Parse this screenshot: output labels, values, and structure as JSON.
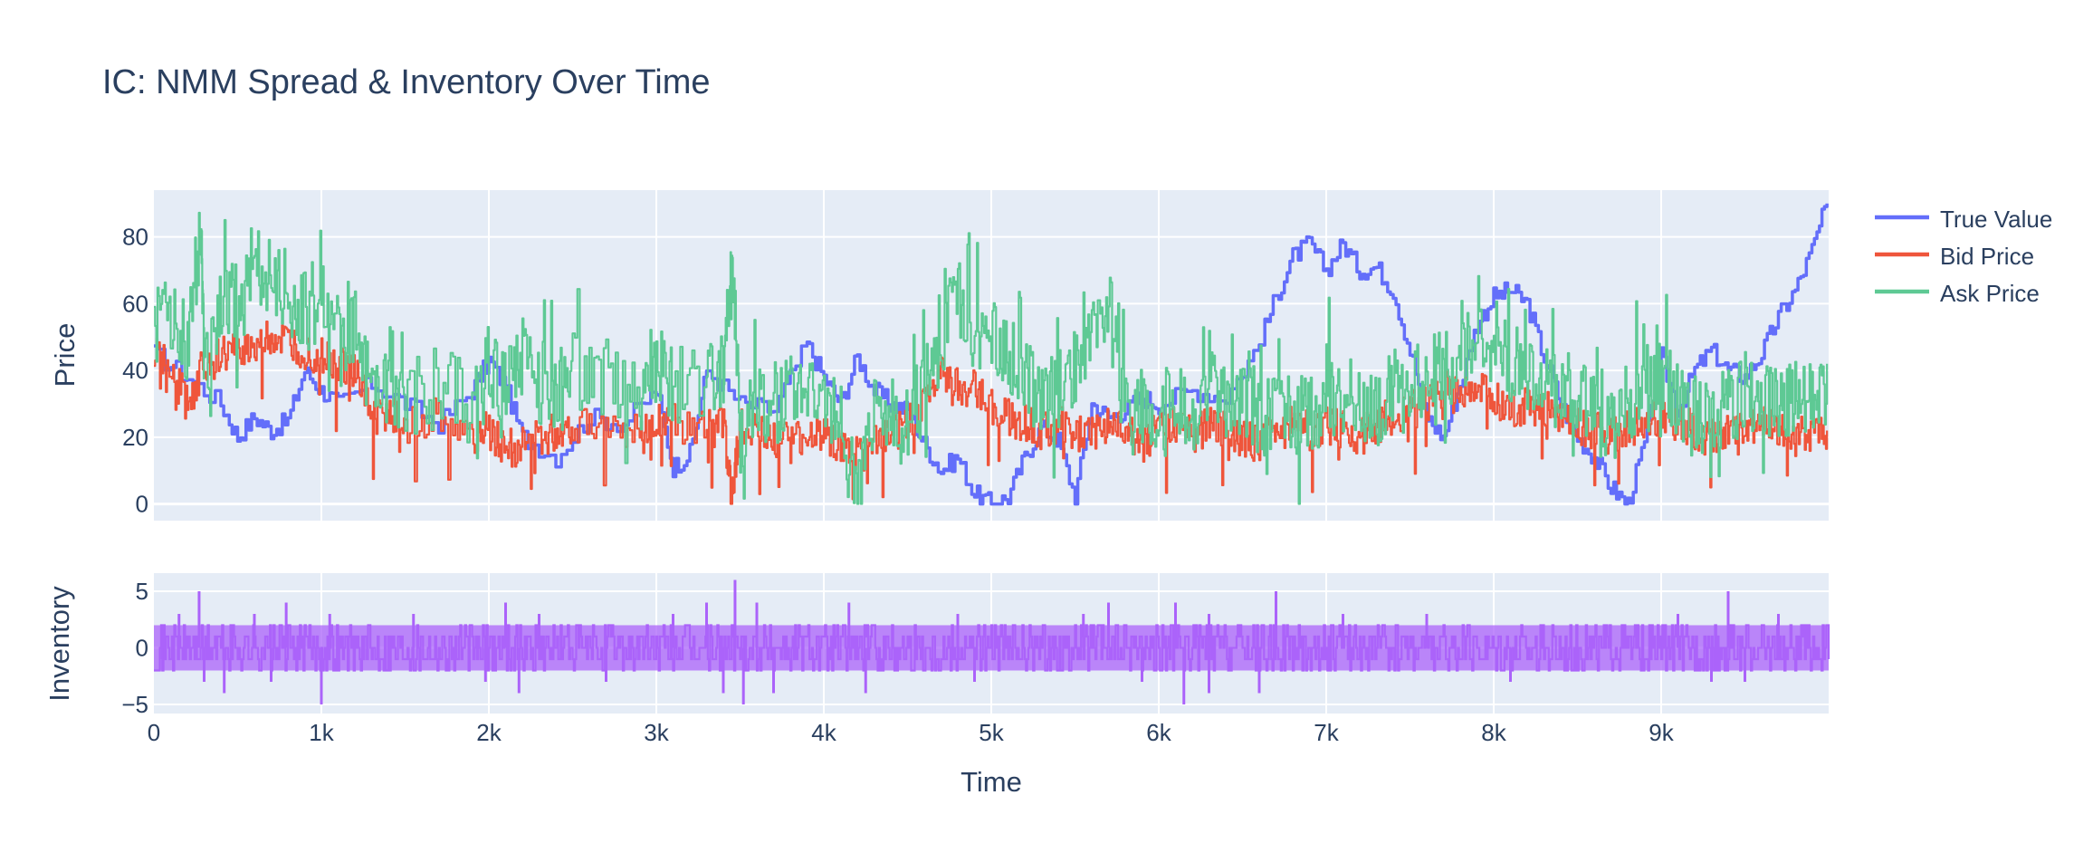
{
  "chart_data": {
    "type": "line",
    "title": "IC: NMM Spread & Inventory Over Time",
    "xlabel": "Time",
    "xlim": [
      0,
      10000
    ],
    "x_ticks": [
      {
        "value": 0,
        "label": "0"
      },
      {
        "value": 1000,
        "label": "1k"
      },
      {
        "value": 2000,
        "label": "2k"
      },
      {
        "value": 3000,
        "label": "3k"
      },
      {
        "value": 4000,
        "label": "4k"
      },
      {
        "value": 5000,
        "label": "5k"
      },
      {
        "value": 6000,
        "label": "6k"
      },
      {
        "value": 7000,
        "label": "7k"
      },
      {
        "value": 8000,
        "label": "8k"
      },
      {
        "value": 9000,
        "label": "9k"
      }
    ],
    "legend_position": "top-right",
    "grid": true,
    "plot_background": "#e5ecf6",
    "panels": [
      {
        "ylabel": "Price",
        "ylim": [
          -5,
          94
        ],
        "y_ticks": [
          0,
          20,
          40,
          60,
          80
        ],
        "series": [
          {
            "name": "True Value",
            "color": "#636efa",
            "shape": "step",
            "x": [
              0,
              200,
              400,
              500,
              600,
              700,
              800,
              900,
              1000,
              1100,
              1300,
              1500,
              1700,
              1900,
              2000,
              2100,
              2200,
              2400,
              2600,
              2800,
              3000,
              3100,
              3200,
              3300,
              3500,
              3700,
              3900,
              4000,
              4100,
              4200,
              4300,
              4400,
              4500,
              4600,
              4700,
              4800,
              4900,
              5000,
              5100,
              5200,
              5300,
              5400,
              5500,
              5600,
              5700,
              5800,
              5900,
              6000,
              6200,
              6400,
              6600,
              6700,
              6800,
              6900,
              7000,
              7100,
              7200,
              7300,
              7400,
              7500,
              7600,
              7700,
              7800,
              7900,
              8000,
              8100,
              8200,
              8300,
              8400,
              8500,
              8600,
              8700,
              8800,
              8900,
              9000,
              9100,
              9200,
              9300,
              9400,
              9500,
              9600,
              9700,
              9800,
              9900,
              9990
            ],
            "y": [
              45,
              38,
              30,
              20,
              26,
              22,
              25,
              40,
              34,
              30,
              36,
              30,
              24,
              34,
              43,
              35,
              20,
              14,
              26,
              24,
              34,
              11,
              15,
              40,
              30,
              28,
              48,
              38,
              30,
              44,
              34,
              30,
              28,
              18,
              10,
              14,
              3,
              0,
              2,
              14,
              23,
              19,
              2,
              30,
              26,
              28,
              32,
              30,
              34,
              32,
              48,
              62,
              74,
              78,
              70,
              78,
              70,
              71,
              64,
              46,
              26,
              20,
              36,
              54,
              62,
              64,
              60,
              44,
              30,
              20,
              14,
              5,
              0,
              18,
              44,
              28,
              40,
              46,
              40,
              38,
              45,
              56,
              64,
              76,
              90
            ]
          },
          {
            "name": "Bid Price",
            "color": "#ef553b",
            "shape": "step",
            "x": [
              0,
              100,
              200,
              300,
              400,
              500,
              600,
              700,
              800,
              900,
              1000,
              1100,
              1200,
              1300,
              1400,
              1500,
              1700,
              1900,
              2000,
              2100,
              2200,
              2300,
              2400,
              2500,
              2700,
              2900,
              3000,
              3100,
              3300,
              3400,
              3450,
              3500,
              3600,
              3700,
              3800,
              3900,
              4000,
              4100,
              4200,
              4300,
              4400,
              4500,
              4600,
              4700,
              4800,
              4900,
              5000,
              5100,
              5200,
              5300,
              5400,
              5500,
              5600,
              5700,
              5800,
              5900,
              6000,
              6100,
              6200,
              6300,
              6400,
              6500,
              6600,
              6700,
              6800,
              6900,
              7000,
              7100,
              7200,
              7300,
              7400,
              7500,
              7600,
              7700,
              7800,
              7900,
              8000,
              8100,
              8200,
              8300,
              8400,
              8500,
              8600,
              8700,
              8800,
              8900,
              9000,
              9100,
              9200,
              9300,
              9400,
              9500,
              9600,
              9700,
              9800,
              9900,
              9990
            ],
            "y": [
              46,
              40,
              30,
              42,
              44,
              46,
              48,
              50,
              48,
              46,
              44,
              42,
              40,
              26,
              28,
              24,
              26,
              20,
              22,
              16,
              18,
              20,
              22,
              24,
              26,
              20,
              24,
              24,
              22,
              24,
              2,
              24,
              22,
              20,
              18,
              20,
              22,
              16,
              14,
              18,
              20,
              24,
              30,
              38,
              36,
              34,
              30,
              26,
              24,
              22,
              24,
              20,
              22,
              24,
              22,
              18,
              22,
              24,
              20,
              24,
              22,
              20,
              18,
              22,
              24,
              22,
              24,
              22,
              20,
              24,
              26,
              28,
              30,
              34,
              36,
              34,
              32,
              28,
              30,
              28,
              26,
              24,
              22,
              20,
              22,
              24,
              26,
              24,
              22,
              20,
              22,
              22,
              24,
              22,
              20,
              22,
              22
            ]
          },
          {
            "name": "Ask Price",
            "color": "#5ec994",
            "shape": "step",
            "x": [
              0,
              100,
              200,
              280,
              300,
              400,
              500,
              600,
              700,
              800,
              900,
              1000,
              1100,
              1200,
              1300,
              1400,
              1500,
              1700,
              1900,
              2000,
              2100,
              2200,
              2300,
              2400,
              2500,
              2700,
              2900,
              3000,
              3100,
              3300,
              3400,
              3450,
              3500,
              3600,
              3700,
              3800,
              3900,
              4000,
              4100,
              4200,
              4300,
              4400,
              4500,
              4600,
              4700,
              4800,
              4900,
              5000,
              5100,
              5200,
              5300,
              5400,
              5500,
              5600,
              5700,
              5800,
              5900,
              6000,
              6100,
              6200,
              6300,
              6400,
              6500,
              6600,
              6700,
              6800,
              6900,
              7000,
              7100,
              7200,
              7300,
              7400,
              7500,
              7600,
              7700,
              7800,
              7900,
              8000,
              8100,
              8200,
              8300,
              8400,
              8500,
              8600,
              8700,
              8800,
              8900,
              9000,
              9100,
              9200,
              9300,
              9400,
              9500,
              9600,
              9700,
              9800,
              9900,
              9990
            ],
            "y": [
              52,
              58,
              48,
              84,
              40,
              60,
              62,
              66,
              70,
              62,
              58,
              56,
              52,
              50,
              32,
              36,
              30,
              38,
              28,
              40,
              34,
              44,
              36,
              30,
              40,
              38,
              30,
              42,
              36,
              38,
              40,
              76,
              20,
              30,
              28,
              34,
              30,
              34,
              20,
              2,
              26,
              30,
              24,
              36,
              48,
              64,
              46,
              52,
              44,
              38,
              30,
              34,
              40,
              54,
              60,
              26,
              30,
              26,
              34,
              22,
              36,
              28,
              34,
              24,
              30,
              26,
              28,
              30,
              34,
              30,
              28,
              32,
              34,
              38,
              40,
              44,
              52,
              46,
              42,
              40,
              36,
              34,
              32,
              30,
              28,
              30,
              32,
              36,
              30,
              28,
              26,
              30,
              32,
              34,
              30,
              32,
              34,
              42
            ]
          }
        ]
      },
      {
        "ylabel": "Inventory",
        "ylim": [
          -5.8,
          6.6
        ],
        "y_ticks": [
          -5,
          0,
          5
        ],
        "series": [
          {
            "name": "Inventory",
            "color": "#ab63fa",
            "shape": "dense-step",
            "range_hi": 2,
            "range_lo": -2,
            "peaks": [
              {
                "x": 50,
                "y": -1
              },
              {
                "x": 150,
                "y": 3
              },
              {
                "x": 270,
                "y": 5
              },
              {
                "x": 300,
                "y": -3
              },
              {
                "x": 420,
                "y": -4
              },
              {
                "x": 600,
                "y": 3
              },
              {
                "x": 700,
                "y": -3
              },
              {
                "x": 790,
                "y": 4
              },
              {
                "x": 1000,
                "y": -5
              },
              {
                "x": 1050,
                "y": 3
              },
              {
                "x": 1550,
                "y": 3
              },
              {
                "x": 1980,
                "y": -3
              },
              {
                "x": 2100,
                "y": 4
              },
              {
                "x": 2180,
                "y": -4
              },
              {
                "x": 2300,
                "y": 3
              },
              {
                "x": 2700,
                "y": -3
              },
              {
                "x": 3100,
                "y": 3
              },
              {
                "x": 3300,
                "y": 4
              },
              {
                "x": 3400,
                "y": -4
              },
              {
                "x": 3470,
                "y": 6
              },
              {
                "x": 3520,
                "y": -5
              },
              {
                "x": 3600,
                "y": 4
              },
              {
                "x": 3700,
                "y": -4
              },
              {
                "x": 4150,
                "y": 4
              },
              {
                "x": 4250,
                "y": -4
              },
              {
                "x": 4800,
                "y": 3
              },
              {
                "x": 4900,
                "y": -3
              },
              {
                "x": 5550,
                "y": 3
              },
              {
                "x": 5700,
                "y": 4
              },
              {
                "x": 5900,
                "y": -3
              },
              {
                "x": 6100,
                "y": 4
              },
              {
                "x": 6150,
                "y": -5
              },
              {
                "x": 6300,
                "y": 3
              },
              {
                "x": 6300,
                "y": -4
              },
              {
                "x": 6700,
                "y": 5
              },
              {
                "x": 6600,
                "y": -4
              },
              {
                "x": 7100,
                "y": 3
              },
              {
                "x": 7600,
                "y": 3
              },
              {
                "x": 8100,
                "y": -3
              },
              {
                "x": 9100,
                "y": 3
              },
              {
                "x": 9400,
                "y": 5
              },
              {
                "x": 9300,
                "y": -3
              },
              {
                "x": 9500,
                "y": -3
              },
              {
                "x": 9700,
                "y": 3
              }
            ]
          }
        ]
      }
    ]
  }
}
